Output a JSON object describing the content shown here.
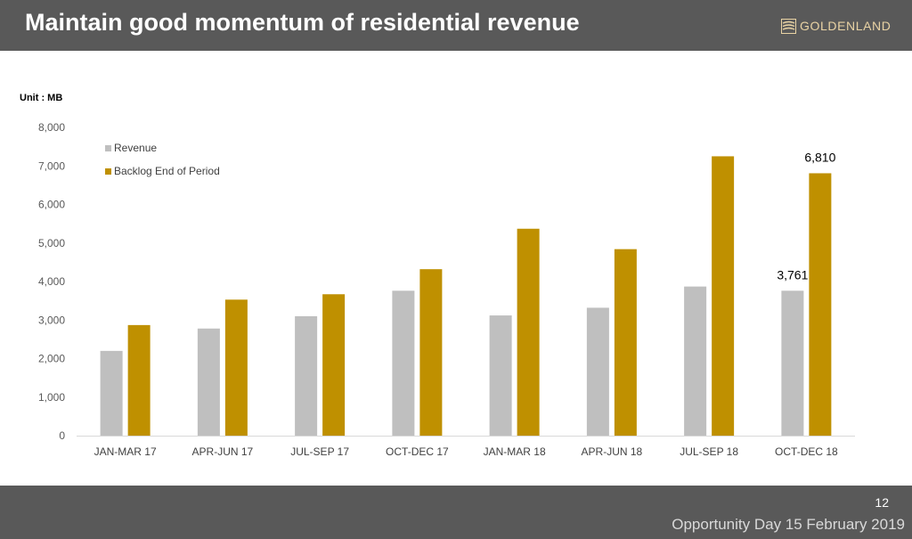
{
  "slide": {
    "title": "Maintain good momentum of residential revenue",
    "logo_text": "GOLDENLAND",
    "page_number": "12",
    "event": "Opportunity Day 15 February 2019"
  },
  "colors": {
    "header_bg": "#595959",
    "revenue": "#bfbfbf",
    "backlog": "#bf9000",
    "logo_accent": "#e9d3a4"
  },
  "chart_data": {
    "type": "bar",
    "unit_label": "Unit : MB",
    "categories": [
      "JAN-MAR 17",
      "APR-JUN 17",
      "JUL-SEP 17",
      "OCT-DEC 17",
      "JAN-MAR 18",
      "APR-JUN 18",
      "JUL-SEP 18",
      "OCT-DEC 18"
    ],
    "series": [
      {
        "name": "Revenue",
        "color": "#bfbfbf",
        "values": [
          2200,
          2780,
          3100,
          3761,
          3120,
          3320,
          3870,
          3761
        ]
      },
      {
        "name": "Backlog End of Period",
        "color": "#bf9000",
        "values": [
          2870,
          3530,
          3670,
          4320,
          5370,
          4840,
          7250,
          6810
        ]
      }
    ],
    "data_labels": [
      {
        "series": 0,
        "index": 7,
        "text": "3,761"
      },
      {
        "series": 1,
        "index": 7,
        "text": "6,810"
      }
    ],
    "ylim": [
      0,
      8000
    ],
    "yticks": [
      0,
      1000,
      2000,
      3000,
      4000,
      5000,
      6000,
      7000,
      8000
    ],
    "ytick_labels": [
      "0",
      "1,000",
      "2,000",
      "3,000",
      "4,000",
      "5,000",
      "6,000",
      "7,000",
      "8,000"
    ],
    "legend": "top-left",
    "grid": false
  }
}
